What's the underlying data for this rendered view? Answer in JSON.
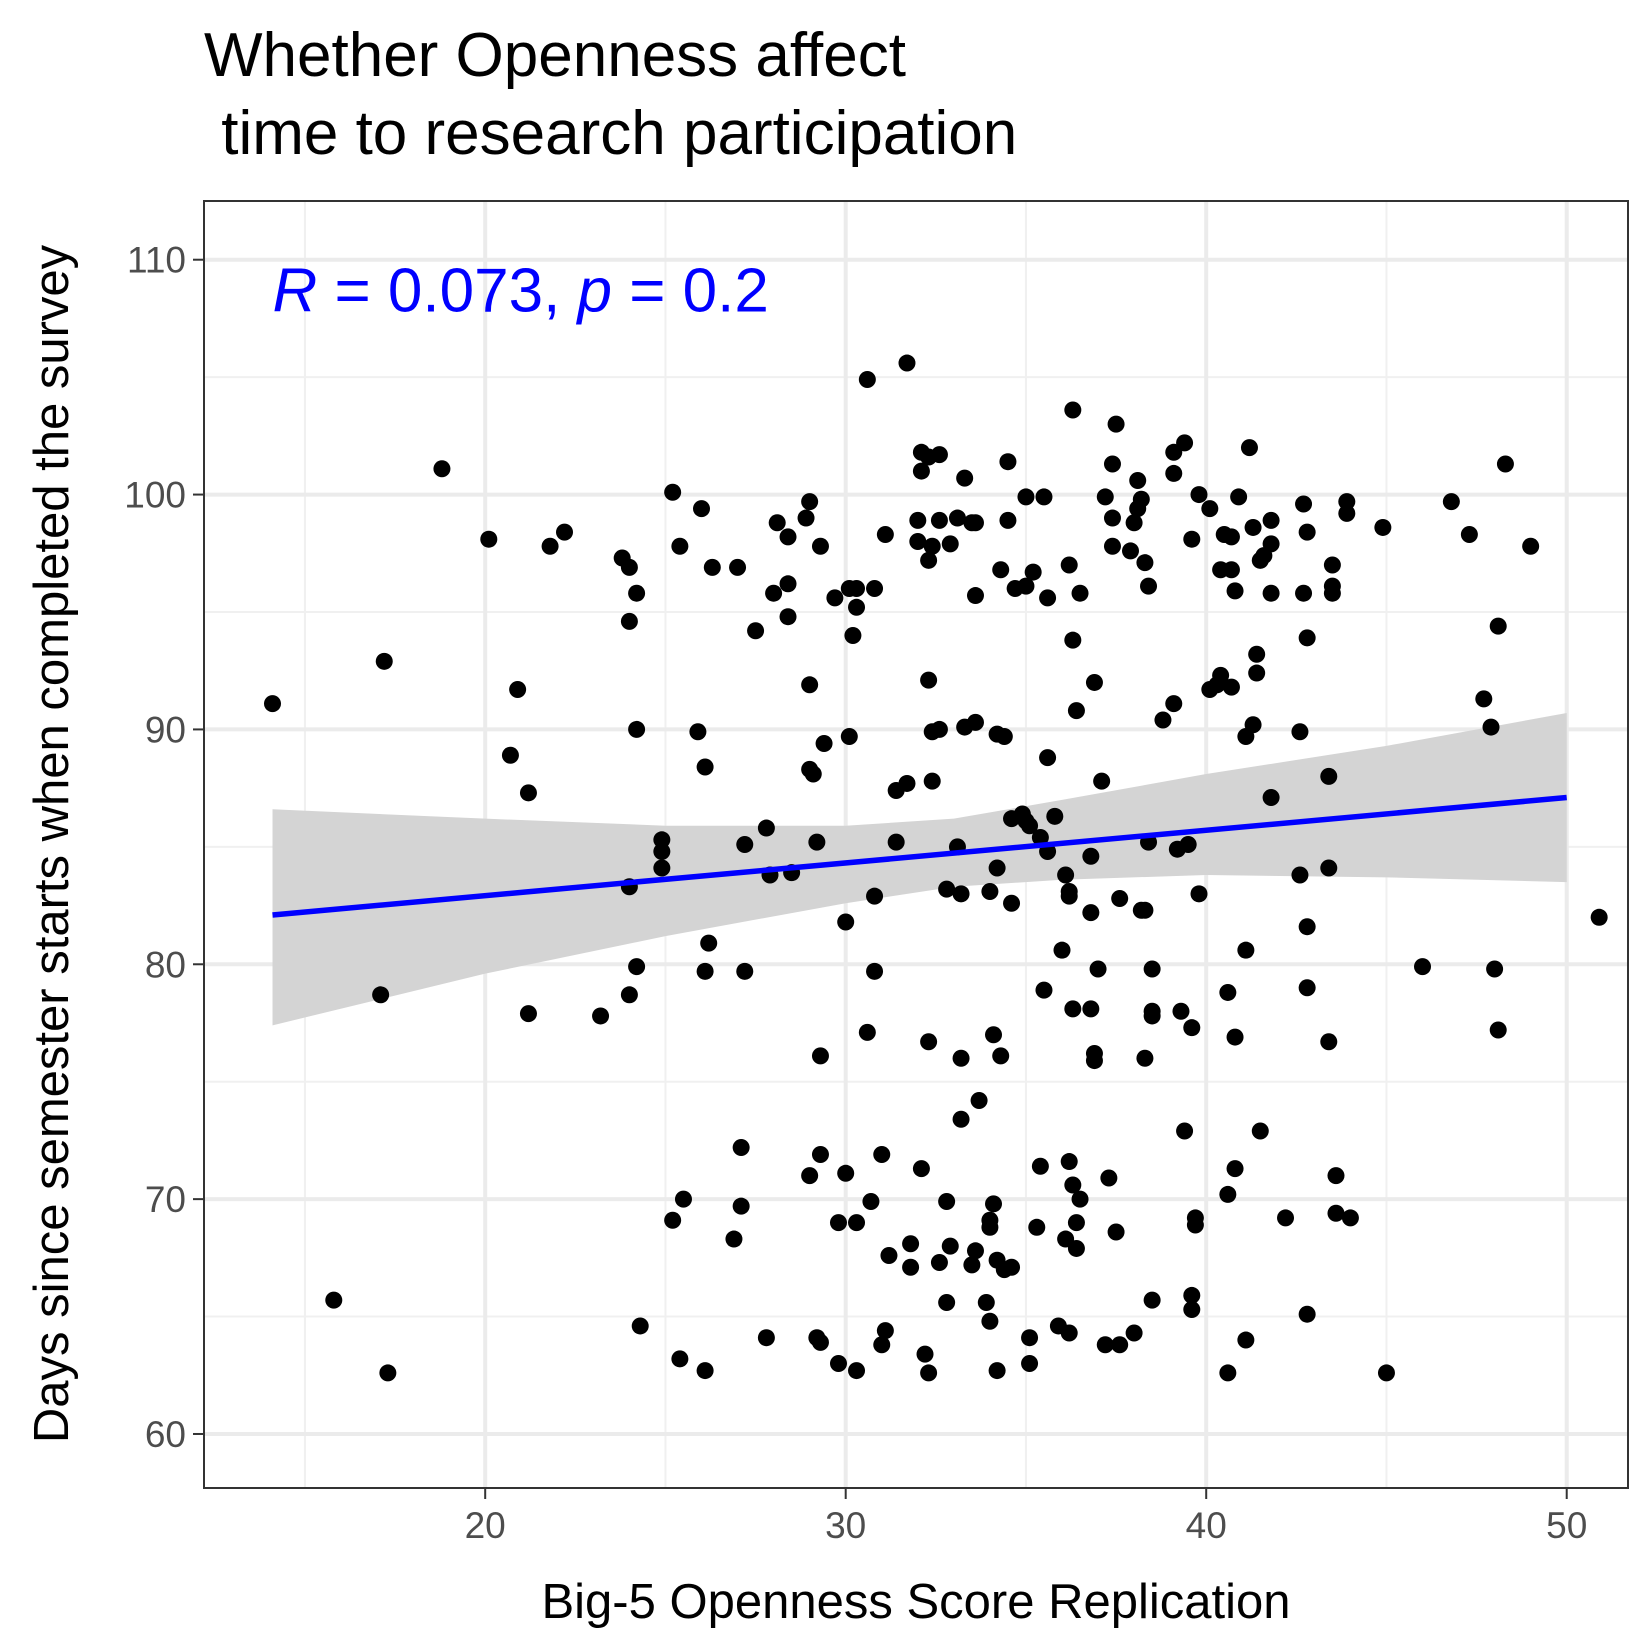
{
  "chart_data": {
    "type": "scatter",
    "title_line1": "Whether Openness affect",
    "title_line2": " time to research participation",
    "xlabel": "Big-5 Openness Score Replication",
    "ylabel": "Days since semester starts when completed the survey",
    "xlim": [
      12.2,
      51.7
    ],
    "ylim": [
      57.7,
      112.5
    ],
    "x_ticks": [
      20,
      30,
      40,
      50
    ],
    "y_ticks": [
      60,
      70,
      80,
      90,
      100,
      110
    ],
    "grid": true,
    "annotation": {
      "r_symbol": "R",
      "r_text": " = 0.073, ",
      "p_symbol": "p",
      "p_text": " = 0.2",
      "color": "#0000FF",
      "x": 14.1,
      "y": 107.8
    },
    "regression": {
      "x_start": 14.1,
      "x_end": 50.0,
      "y_start": 82.1,
      "y_end": 87.1,
      "line_color": "#0000FF",
      "ci_color": "#d4d4d4",
      "ci_upper": [
        [
          14.1,
          86.6
        ],
        [
          20,
          86.2
        ],
        [
          25,
          85.9
        ],
        [
          30,
          85.9
        ],
        [
          33,
          86.2
        ],
        [
          36,
          87.0
        ],
        [
          40,
          88.1
        ],
        [
          45,
          89.3
        ],
        [
          50,
          90.7
        ]
      ],
      "ci_lower": [
        [
          14.1,
          77.4
        ],
        [
          20,
          79.6
        ],
        [
          25,
          81.2
        ],
        [
          30,
          82.6
        ],
        [
          33,
          83.3
        ],
        [
          36,
          83.6
        ],
        [
          40,
          83.8
        ],
        [
          45,
          83.7
        ],
        [
          50,
          83.5
        ]
      ]
    },
    "point_color": "#000000",
    "points": [
      [
        14.1,
        91.1
      ],
      [
        15.8,
        65.7
      ],
      [
        17.1,
        78.7
      ],
      [
        17.2,
        92.9
      ],
      [
        17.3,
        62.6
      ],
      [
        18.8,
        101.1
      ],
      [
        20.1,
        98.1
      ],
      [
        20.7,
        88.9
      ],
      [
        20.9,
        91.7
      ],
      [
        21.2,
        87.3
      ],
      [
        21.2,
        77.9
      ],
      [
        21.8,
        97.8
      ],
      [
        22.2,
        98.4
      ],
      [
        23.2,
        77.8
      ],
      [
        23.8,
        97.3
      ],
      [
        24.0,
        96.9
      ],
      [
        24.0,
        94.6
      ],
      [
        24.0,
        83.3
      ],
      [
        24.0,
        78.7
      ],
      [
        24.2,
        95.8
      ],
      [
        24.2,
        90.0
      ],
      [
        24.2,
        79.9
      ],
      [
        24.3,
        64.6
      ],
      [
        24.9,
        85.3
      ],
      [
        24.9,
        84.8
      ],
      [
        24.9,
        84.1
      ],
      [
        25.2,
        100.1
      ],
      [
        25.2,
        69.1
      ],
      [
        25.4,
        97.8
      ],
      [
        25.4,
        63.2
      ],
      [
        25.5,
        70.0
      ],
      [
        25.9,
        89.9
      ],
      [
        26.0,
        99.4
      ],
      [
        26.1,
        88.4
      ],
      [
        26.1,
        79.7
      ],
      [
        26.1,
        62.7
      ],
      [
        26.2,
        80.9
      ],
      [
        26.3,
        96.9
      ],
      [
        26.9,
        68.3
      ],
      [
        27.0,
        96.9
      ],
      [
        27.1,
        69.7
      ],
      [
        27.1,
        72.2
      ],
      [
        27.2,
        79.7
      ],
      [
        27.2,
        85.1
      ],
      [
        27.5,
        94.2
      ],
      [
        27.8,
        85.8
      ],
      [
        27.8,
        64.1
      ],
      [
        27.9,
        83.8
      ],
      [
        28.0,
        95.8
      ],
      [
        28.1,
        98.8
      ],
      [
        28.4,
        98.2
      ],
      [
        28.4,
        96.2
      ],
      [
        28.4,
        94.8
      ],
      [
        28.5,
        83.9
      ],
      [
        28.9,
        99.0
      ],
      [
        29.0,
        99.7
      ],
      [
        29.0,
        91.9
      ],
      [
        29.0,
        88.3
      ],
      [
        29.0,
        71.0
      ],
      [
        29.1,
        88.1
      ],
      [
        29.2,
        85.2
      ],
      [
        29.2,
        64.1
      ],
      [
        29.3,
        97.8
      ],
      [
        29.3,
        76.1
      ],
      [
        29.3,
        71.9
      ],
      [
        29.3,
        63.9
      ],
      [
        29.4,
        89.4
      ],
      [
        29.7,
        95.6
      ],
      [
        29.8,
        69.0
      ],
      [
        29.8,
        63.0
      ],
      [
        30.0,
        81.8
      ],
      [
        30.0,
        71.1
      ],
      [
        30.1,
        96.0
      ],
      [
        30.1,
        89.7
      ],
      [
        30.2,
        94.0
      ],
      [
        30.3,
        96.0
      ],
      [
        30.3,
        95.2
      ],
      [
        30.3,
        69.0
      ],
      [
        30.3,
        62.7
      ],
      [
        30.6,
        104.9
      ],
      [
        30.6,
        77.1
      ],
      [
        30.7,
        69.9
      ],
      [
        30.8,
        96.0
      ],
      [
        30.8,
        82.9
      ],
      [
        30.8,
        79.7
      ],
      [
        31.0,
        71.9
      ],
      [
        31.0,
        63.8
      ],
      [
        31.1,
        98.3
      ],
      [
        31.1,
        64.4
      ],
      [
        31.2,
        67.6
      ],
      [
        31.4,
        87.4
      ],
      [
        31.4,
        85.2
      ],
      [
        31.7,
        105.6
      ],
      [
        31.7,
        87.7
      ],
      [
        31.8,
        67.1
      ],
      [
        31.8,
        68.1
      ],
      [
        32.0,
        98.9
      ],
      [
        32.0,
        98.0
      ],
      [
        32.1,
        101.8
      ],
      [
        32.1,
        101.0
      ],
      [
        32.1,
        71.3
      ],
      [
        32.2,
        63.4
      ],
      [
        32.3,
        101.6
      ],
      [
        32.3,
        97.2
      ],
      [
        32.3,
        92.1
      ],
      [
        32.3,
        76.7
      ],
      [
        32.3,
        62.6
      ],
      [
        32.4,
        97.8
      ],
      [
        32.4,
        89.9
      ],
      [
        32.4,
        87.8
      ],
      [
        32.6,
        101.7
      ],
      [
        32.6,
        98.9
      ],
      [
        32.6,
        90.0
      ],
      [
        32.6,
        67.3
      ],
      [
        32.8,
        83.2
      ],
      [
        32.8,
        69.9
      ],
      [
        32.8,
        65.6
      ],
      [
        32.9,
        97.9
      ],
      [
        32.9,
        68.0
      ],
      [
        33.1,
        85.0
      ],
      [
        33.1,
        99.0
      ],
      [
        33.2,
        83.0
      ],
      [
        33.2,
        76.0
      ],
      [
        33.2,
        73.4
      ],
      [
        33.3,
        100.7
      ],
      [
        33.3,
        90.1
      ],
      [
        33.5,
        98.8
      ],
      [
        33.5,
        67.2
      ],
      [
        33.6,
        95.7
      ],
      [
        33.6,
        98.8
      ],
      [
        33.6,
        90.3
      ],
      [
        33.6,
        67.8
      ],
      [
        33.7,
        74.2
      ],
      [
        33.9,
        65.6
      ],
      [
        34.0,
        83.1
      ],
      [
        34.0,
        69.1
      ],
      [
        34.0,
        68.8
      ],
      [
        34.0,
        64.8
      ],
      [
        34.1,
        69.8
      ],
      [
        34.1,
        77.0
      ],
      [
        34.2,
        89.8
      ],
      [
        34.2,
        84.1
      ],
      [
        34.2,
        67.4
      ],
      [
        34.2,
        62.7
      ],
      [
        34.3,
        96.8
      ],
      [
        34.3,
        76.1
      ],
      [
        34.4,
        89.7
      ],
      [
        34.4,
        67.0
      ],
      [
        34.5,
        101.4
      ],
      [
        34.5,
        98.9
      ],
      [
        34.6,
        86.2
      ],
      [
        34.6,
        82.6
      ],
      [
        34.6,
        67.1
      ],
      [
        34.7,
        96.0
      ],
      [
        34.9,
        86.4
      ],
      [
        35.0,
        99.9
      ],
      [
        35.0,
        96.1
      ],
      [
        35.0,
        86.1
      ],
      [
        35.1,
        85.9
      ],
      [
        35.1,
        64.1
      ],
      [
        35.1,
        63.0
      ],
      [
        35.2,
        96.7
      ],
      [
        35.3,
        68.8
      ],
      [
        35.4,
        85.4
      ],
      [
        35.4,
        71.4
      ],
      [
        35.5,
        99.9
      ],
      [
        35.5,
        78.9
      ],
      [
        35.6,
        95.6
      ],
      [
        35.6,
        88.8
      ],
      [
        35.6,
        84.8
      ],
      [
        35.8,
        86.3
      ],
      [
        35.9,
        64.6
      ],
      [
        36.0,
        80.6
      ],
      [
        36.1,
        83.8
      ],
      [
        36.1,
        68.3
      ],
      [
        36.2,
        97.0
      ],
      [
        36.2,
        83.1
      ],
      [
        36.2,
        82.9
      ],
      [
        36.2,
        64.3
      ],
      [
        36.2,
        71.6
      ],
      [
        36.3,
        103.6
      ],
      [
        36.3,
        93.8
      ],
      [
        36.3,
        78.1
      ],
      [
        36.3,
        70.6
      ],
      [
        36.4,
        90.8
      ],
      [
        36.4,
        69.0
      ],
      [
        36.4,
        67.9
      ],
      [
        36.5,
        95.8
      ],
      [
        36.5,
        70.0
      ],
      [
        36.8,
        84.6
      ],
      [
        36.8,
        82.2
      ],
      [
        36.8,
        78.1
      ],
      [
        36.9,
        92.0
      ],
      [
        36.9,
        76.2
      ],
      [
        36.9,
        75.9
      ],
      [
        37.0,
        79.8
      ],
      [
        37.1,
        87.8
      ],
      [
        37.2,
        99.9
      ],
      [
        37.2,
        63.8
      ],
      [
        37.3,
        70.9
      ],
      [
        37.4,
        101.3
      ],
      [
        37.4,
        99.0
      ],
      [
        37.4,
        97.8
      ],
      [
        37.5,
        68.6
      ],
      [
        37.5,
        103.0
      ],
      [
        37.6,
        63.8
      ],
      [
        37.6,
        82.8
      ],
      [
        37.9,
        97.6
      ],
      [
        38.0,
        98.8
      ],
      [
        38.0,
        64.3
      ],
      [
        38.1,
        100.6
      ],
      [
        38.1,
        99.4
      ],
      [
        38.2,
        99.8
      ],
      [
        38.2,
        82.3
      ],
      [
        38.3,
        97.1
      ],
      [
        38.3,
        82.3
      ],
      [
        38.3,
        76.0
      ],
      [
        38.4,
        96.1
      ],
      [
        38.4,
        85.2
      ],
      [
        38.5,
        79.8
      ],
      [
        38.5,
        78.0
      ],
      [
        38.5,
        77.8
      ],
      [
        38.5,
        65.7
      ],
      [
        38.8,
        90.4
      ],
      [
        39.1,
        100.9
      ],
      [
        39.1,
        91.1
      ],
      [
        39.1,
        101.8
      ],
      [
        39.2,
        84.9
      ],
      [
        39.3,
        78.0
      ],
      [
        39.4,
        102.2
      ],
      [
        39.4,
        72.9
      ],
      [
        39.5,
        85.1
      ],
      [
        39.6,
        98.1
      ],
      [
        39.6,
        77.3
      ],
      [
        39.6,
        65.9
      ],
      [
        39.6,
        65.3
      ],
      [
        39.7,
        69.2
      ],
      [
        39.7,
        68.9
      ],
      [
        39.8,
        100.0
      ],
      [
        39.8,
        83.0
      ],
      [
        40.1,
        91.7
      ],
      [
        40.1,
        99.4
      ],
      [
        40.3,
        91.9
      ],
      [
        40.4,
        96.8
      ],
      [
        40.4,
        92.3
      ],
      [
        40.5,
        98.3
      ],
      [
        40.6,
        70.2
      ],
      [
        40.6,
        78.8
      ],
      [
        40.6,
        62.6
      ],
      [
        40.7,
        96.8
      ],
      [
        40.7,
        91.8
      ],
      [
        40.7,
        98.2
      ],
      [
        40.8,
        71.3
      ],
      [
        40.8,
        76.9
      ],
      [
        40.8,
        95.9
      ],
      [
        40.9,
        99.9
      ],
      [
        41.1,
        89.7
      ],
      [
        41.1,
        80.6
      ],
      [
        41.1,
        64.0
      ],
      [
        41.2,
        102.0
      ],
      [
        41.3,
        98.6
      ],
      [
        41.3,
        90.2
      ],
      [
        41.4,
        92.4
      ],
      [
        41.4,
        93.2
      ],
      [
        41.5,
        97.2
      ],
      [
        41.5,
        72.9
      ],
      [
        41.6,
        97.4
      ],
      [
        41.8,
        87.1
      ],
      [
        41.8,
        95.8
      ],
      [
        41.8,
        98.9
      ],
      [
        41.8,
        97.9
      ],
      [
        42.2,
        69.2
      ],
      [
        42.6,
        83.8
      ],
      [
        42.6,
        89.9
      ],
      [
        42.7,
        99.6
      ],
      [
        42.7,
        95.8
      ],
      [
        42.8,
        98.4
      ],
      [
        42.8,
        93.9
      ],
      [
        42.8,
        81.6
      ],
      [
        42.8,
        79.0
      ],
      [
        42.8,
        65.1
      ],
      [
        43.4,
        88.0
      ],
      [
        43.4,
        84.1
      ],
      [
        43.4,
        76.7
      ],
      [
        43.5,
        97.0
      ],
      [
        43.5,
        96.1
      ],
      [
        43.5,
        95.8
      ],
      [
        43.6,
        71.0
      ],
      [
        43.6,
        69.4
      ],
      [
        43.9,
        99.7
      ],
      [
        43.9,
        99.2
      ],
      [
        44.0,
        69.2
      ],
      [
        44.9,
        98.6
      ],
      [
        45.0,
        62.6
      ],
      [
        46.0,
        79.9
      ],
      [
        46.8,
        99.7
      ],
      [
        47.3,
        98.3
      ],
      [
        47.7,
        91.3
      ],
      [
        47.9,
        90.1
      ],
      [
        48.0,
        79.8
      ],
      [
        48.1,
        94.4
      ],
      [
        48.1,
        77.2
      ],
      [
        48.3,
        101.3
      ],
      [
        49.0,
        97.8
      ],
      [
        50.9,
        82.0
      ]
    ]
  }
}
